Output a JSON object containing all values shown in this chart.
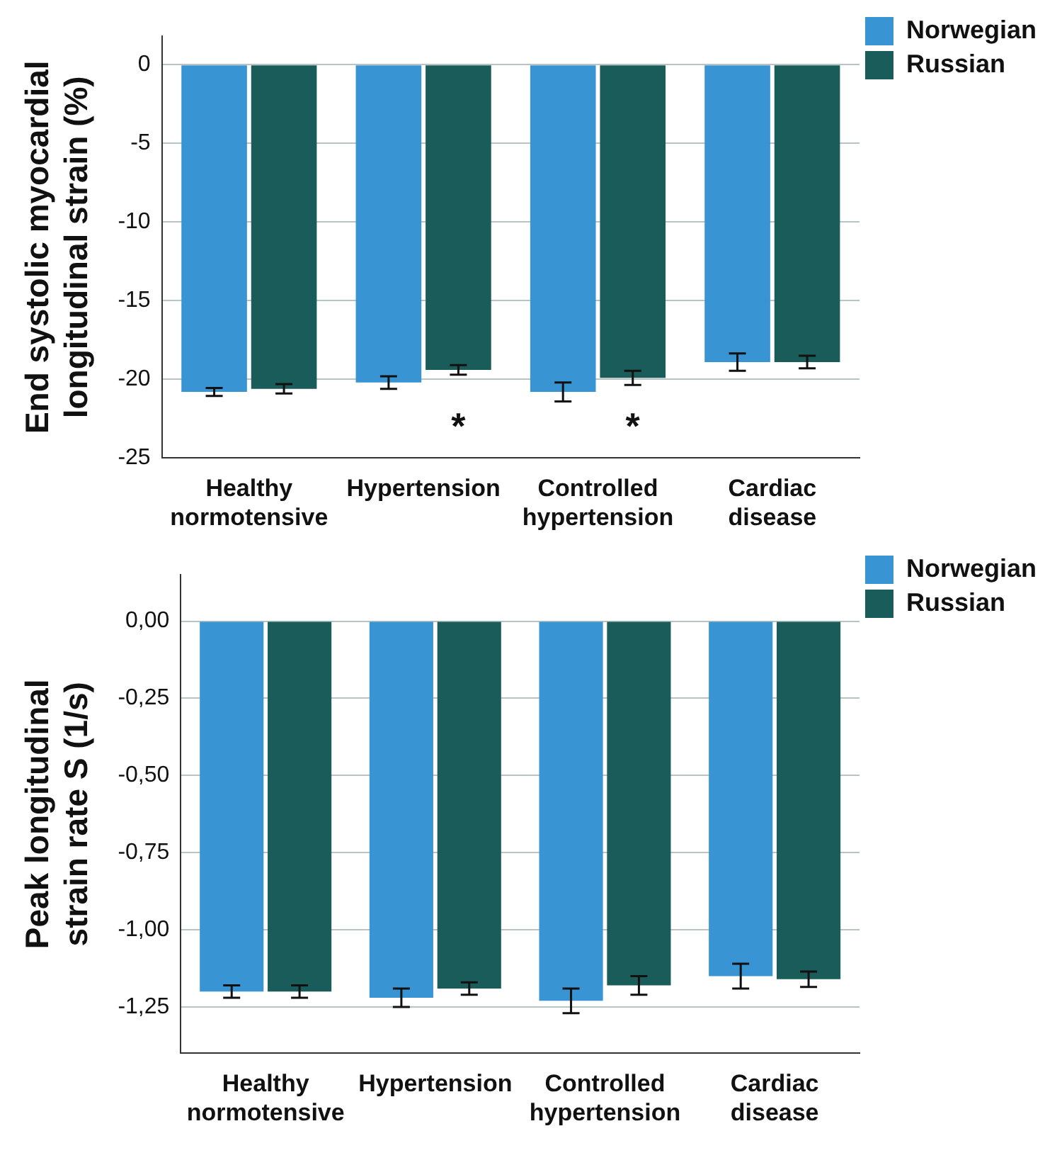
{
  "chart_data": [
    {
      "type": "bar",
      "ylabel": "End systolic myocardial longitudinal strain (%)",
      "categories": [
        "Healthy normotensive",
        "Hypertension",
        "Controlled hypertension",
        "Cardiac disease"
      ],
      "series": [
        {
          "name": "Norwegian",
          "color": "#3894d2",
          "values": [
            -20.8,
            -20.2,
            -20.8,
            -18.9
          ],
          "errors": [
            0.25,
            0.4,
            0.6,
            0.55
          ]
        },
        {
          "name": "Russian",
          "color": "#1a5c5a",
          "values": [
            -20.6,
            -19.4,
            -19.9,
            -18.9
          ],
          "errors": [
            0.3,
            0.3,
            0.45,
            0.4
          ]
        }
      ],
      "ylim": [
        -25,
        1.8
      ],
      "yticks": [
        0,
        -5,
        -10,
        -15,
        -20,
        -25
      ],
      "grid": "y",
      "legend": "top right",
      "annotations": [
        "*",
        "*"
      ]
    },
    {
      "type": "bar",
      "ylabel": "Peak longitudinal strain rate S (1/s)",
      "categories": [
        "Healthy normotensive",
        "Hypertension",
        "Controlled hypertension",
        "Cardiac disease"
      ],
      "series": [
        {
          "name": "Norwegian",
          "color": "#3894d2",
          "values": [
            -1.2,
            -1.22,
            -1.23,
            -1.15
          ],
          "errors": [
            0.02,
            0.03,
            0.04,
            0.04
          ]
        },
        {
          "name": "Russian",
          "color": "#1a5c5a",
          "values": [
            -1.2,
            -1.19,
            -1.18,
            -1.16
          ],
          "errors": [
            0.02,
            0.02,
            0.03,
            0.025
          ]
        }
      ],
      "ylim": [
        -1.4,
        0.15
      ],
      "yticks": [
        {
          "value": 0,
          "label": "0,00"
        },
        {
          "value": -0.25,
          "label": "-0,25"
        },
        {
          "value": -0.5,
          "label": "-0,50"
        },
        {
          "value": -0.75,
          "label": "-0,75"
        },
        {
          "value": -1,
          "label": "-1,00"
        },
        {
          "value": -1.25,
          "label": "-1,25"
        }
      ],
      "grid": "y",
      "legend": "top right"
    }
  ]
}
